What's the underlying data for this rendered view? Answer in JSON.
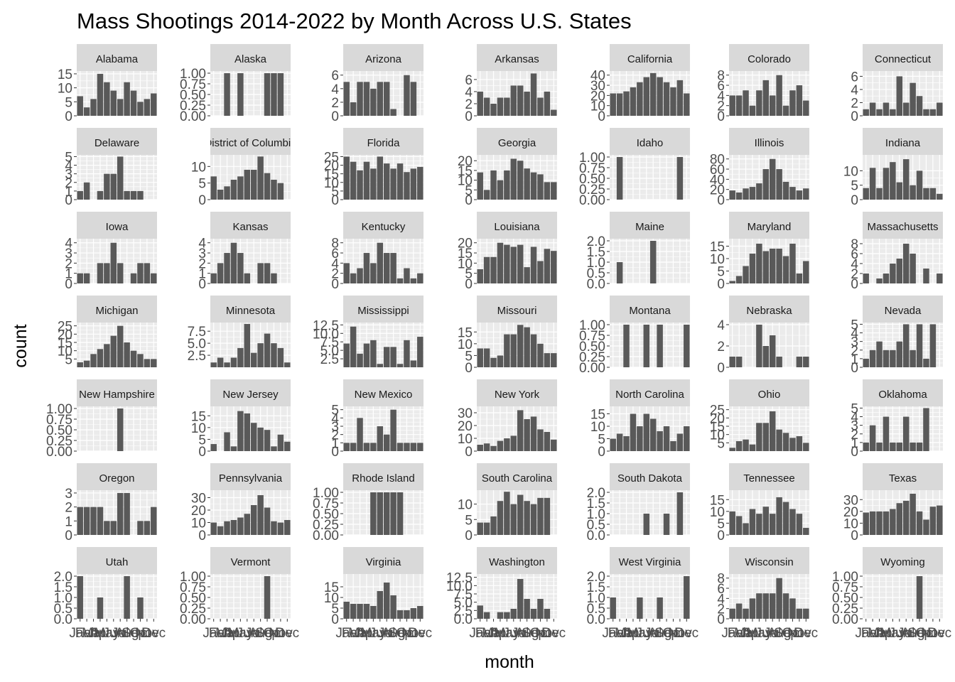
{
  "chart_data": {
    "type": "bar",
    "title": "Mass Shootings 2014-2022 by Month Across U.S. States",
    "xlabel": "month",
    "ylabel": "count",
    "layout": "facet_wrap, 7 columns",
    "grid": true,
    "colors": {
      "bar": "#595959",
      "panel": "#ebebeb",
      "strip": "#d9d9d9",
      "gridline": "#ffffff"
    },
    "categories": [
      "Jan",
      "Feb",
      "Mar",
      "Apr",
      "May",
      "Jun",
      "Jul",
      "Aug",
      "Sep",
      "Oct",
      "Nov",
      "Dec"
    ],
    "panels": [
      {
        "name": "Alabama",
        "ymax": 16,
        "ticks": [
          0,
          5,
          10,
          15
        ],
        "values": [
          7,
          3,
          6,
          15,
          12,
          9,
          6,
          12,
          9,
          5,
          6,
          8
        ]
      },
      {
        "name": "Alaska",
        "ymax": 1.05,
        "ticks": [
          0,
          0.25,
          0.5,
          0.75,
          1
        ],
        "tick_labels": [
          "0.00",
          "0.25",
          "0.50",
          "0.75",
          "1.00"
        ],
        "values": [
          0,
          0,
          1,
          0,
          1,
          0,
          0,
          0,
          1,
          1,
          1,
          0
        ]
      },
      {
        "name": "Arizona",
        "ymax": 6.6,
        "ticks": [
          0,
          2,
          4,
          6
        ],
        "values": [
          5,
          2,
          5,
          5,
          4,
          5,
          5,
          1,
          0,
          6,
          5,
          0
        ]
      },
      {
        "name": "Arkansas",
        "ymax": 7.4,
        "ticks": [
          0,
          2,
          4,
          6
        ],
        "values": [
          4,
          3,
          2,
          3,
          3,
          5,
          5,
          4,
          7,
          3,
          4,
          1
        ]
      },
      {
        "name": "California",
        "ymax": 44,
        "ticks": [
          0,
          10,
          20,
          30,
          40
        ],
        "values": [
          22,
          22,
          24,
          28,
          33,
          38,
          42,
          38,
          33,
          28,
          35,
          22
        ]
      },
      {
        "name": "Colorado",
        "ymax": 8.8,
        "ticks": [
          0,
          2,
          4,
          6,
          8
        ],
        "values": [
          4,
          4,
          5,
          2,
          5,
          7,
          4,
          8,
          2,
          5,
          6,
          3
        ]
      },
      {
        "name": "Connecticut",
        "ymax": 6.8,
        "ticks": [
          0,
          2,
          4,
          6
        ],
        "values": [
          1,
          2,
          1,
          2,
          1,
          6,
          2,
          5,
          3,
          1,
          1,
          2
        ]
      },
      {
        "name": "Delaware",
        "ymax": 5.2,
        "ticks": [
          0,
          1,
          2,
          3,
          4,
          5
        ],
        "values": [
          1,
          2,
          0,
          1,
          3,
          3,
          5,
          1,
          1,
          1,
          0,
          0
        ]
      },
      {
        "name": "District of Columbia",
        "ymax": 13.5,
        "ticks": [
          0,
          5,
          10
        ],
        "values": [
          7,
          3,
          4,
          6,
          7,
          9,
          9,
          13,
          8,
          6,
          5,
          0
        ]
      },
      {
        "name": "Florida",
        "ymax": 26,
        "ticks": [
          0,
          5,
          10,
          15,
          20,
          25
        ],
        "values": [
          25,
          22,
          17,
          22,
          18,
          25,
          21,
          18,
          21,
          16,
          18,
          19
        ]
      },
      {
        "name": "Georgia",
        "ymax": 23,
        "ticks": [
          0,
          5,
          10,
          15,
          20
        ],
        "values": [
          14,
          5,
          15,
          10,
          15,
          21,
          20,
          16,
          14,
          13,
          9,
          9
        ]
      },
      {
        "name": "Idaho",
        "ymax": 1.05,
        "ticks": [
          0,
          0.25,
          0.5,
          0.75,
          1
        ],
        "tick_labels": [
          "0.00",
          "0.25",
          "0.50",
          "0.75",
          "1.00"
        ],
        "values": [
          0,
          1,
          0,
          0,
          0,
          0,
          0,
          0,
          0,
          0,
          1,
          0
        ]
      },
      {
        "name": "Illinois",
        "ymax": 88,
        "ticks": [
          0,
          20,
          40,
          60,
          80
        ],
        "values": [
          18,
          14,
          22,
          25,
          32,
          60,
          80,
          60,
          35,
          25,
          18,
          22
        ]
      },
      {
        "name": "Indiana",
        "ymax": 15.5,
        "ticks": [
          0,
          5,
          10
        ],
        "values": [
          4,
          11,
          4,
          11,
          13,
          6,
          14,
          5,
          10,
          4,
          4,
          2
        ]
      },
      {
        "name": "Iowa",
        "ymax": 4.4,
        "ticks": [
          0,
          1,
          2,
          3,
          4
        ],
        "values": [
          1,
          1,
          0,
          2,
          2,
          4,
          2,
          0,
          1,
          2,
          2,
          1
        ]
      },
      {
        "name": "Kansas",
        "ymax": 4.4,
        "ticks": [
          0,
          1,
          2,
          3,
          4
        ],
        "values": [
          1,
          2,
          3,
          4,
          3,
          1,
          0,
          2,
          2,
          1,
          0,
          0
        ]
      },
      {
        "name": "Kentucky",
        "ymax": 8.8,
        "ticks": [
          0,
          2,
          4,
          6,
          8
        ],
        "values": [
          4,
          2,
          3,
          6,
          4,
          8,
          6,
          6,
          1,
          3,
          1,
          2
        ]
      },
      {
        "name": "Louisiana",
        "ymax": 22,
        "ticks": [
          0,
          5,
          10,
          15,
          20
        ],
        "values": [
          7,
          13,
          13,
          20,
          19,
          18,
          19,
          8,
          18,
          11,
          17,
          16
        ]
      },
      {
        "name": "Maine",
        "ymax": 2.1,
        "ticks": [
          0,
          0.5,
          1,
          1.5,
          2
        ],
        "tick_labels": [
          "0.0",
          "0.5",
          "1.0",
          "1.5",
          "2.0"
        ],
        "values": [
          0,
          1,
          0,
          0,
          0,
          0,
          2,
          0,
          0,
          0,
          0,
          0
        ]
      },
      {
        "name": "Maryland",
        "ymax": 18,
        "ticks": [
          0,
          5,
          10,
          15
        ],
        "values": [
          1,
          3,
          7,
          12,
          16,
          13,
          14,
          14,
          11,
          16,
          4,
          9
        ]
      },
      {
        "name": "Massachusetts",
        "ymax": 9,
        "ticks": [
          0,
          2,
          4,
          6,
          8
        ],
        "values": [
          2,
          0,
          1,
          2,
          4,
          5,
          8,
          6,
          0,
          3,
          0,
          2
        ]
      },
      {
        "name": "Michigan",
        "ymax": 27,
        "ticks": [
          5,
          10,
          15,
          20,
          25
        ],
        "values": [
          3,
          4,
          8,
          11,
          14,
          19,
          25,
          15,
          10,
          8,
          5,
          5
        ]
      },
      {
        "name": "Minnesota",
        "ymax": 9.3,
        "ticks": [
          2.5,
          5,
          7.5
        ],
        "tick_labels": [
          "2.5",
          "5.0",
          "7.5"
        ],
        "values": [
          1,
          2,
          1,
          2,
          4,
          9,
          3,
          5,
          7,
          5,
          4,
          1
        ]
      },
      {
        "name": "Mississippi",
        "ymax": 13.2,
        "ticks": [
          2.5,
          5,
          7.5,
          10,
          12.5
        ],
        "tick_labels": [
          "2.5",
          "5.0",
          "7.5",
          "10.0",
          "12.5"
        ],
        "values": [
          7,
          12,
          4,
          7,
          8,
          1,
          6,
          6,
          1,
          8,
          2,
          9
        ]
      },
      {
        "name": "Missouri",
        "ymax": 19,
        "ticks": [
          0,
          5,
          10,
          15
        ],
        "values": [
          8,
          8,
          4,
          5,
          14,
          14,
          18,
          17,
          14,
          10,
          6,
          6
        ]
      },
      {
        "name": "Montana",
        "ymax": 1.05,
        "ticks": [
          0,
          0.25,
          0.5,
          0.75,
          1
        ],
        "tick_labels": [
          "0.00",
          "0.25",
          "0.50",
          "0.75",
          "1.00"
        ],
        "values": [
          0,
          0,
          1,
          0,
          0,
          1,
          0,
          1,
          0,
          0,
          0,
          1
        ]
      },
      {
        "name": "Nebraska",
        "ymax": 4.2,
        "ticks": [
          0,
          2,
          4
        ],
        "values": [
          1,
          1,
          0,
          0,
          4,
          2,
          3,
          1,
          0,
          0,
          1,
          1
        ]
      },
      {
        "name": "Nevada",
        "ymax": 5.2,
        "ticks": [
          0,
          1,
          2,
          3,
          4,
          5
        ],
        "values": [
          1,
          2,
          3,
          2,
          2,
          3,
          5,
          2,
          5,
          1,
          5,
          0
        ]
      },
      {
        "name": "New Hampshire",
        "ymax": 1.05,
        "ticks": [
          0,
          0.25,
          0.5,
          0.75,
          1
        ],
        "tick_labels": [
          "0.00",
          "0.25",
          "0.50",
          "0.75",
          "1.00"
        ],
        "values": [
          0,
          0,
          0,
          0,
          0,
          0,
          1,
          0,
          0,
          0,
          0,
          0
        ]
      },
      {
        "name": "New Jersey",
        "ymax": 19,
        "ticks": [
          0,
          5,
          10,
          15
        ],
        "values": [
          3,
          0,
          8,
          2,
          17,
          16,
          12,
          10,
          9,
          2,
          7,
          4
        ]
      },
      {
        "name": "New Mexico",
        "ymax": 5.4,
        "ticks": [
          0,
          1,
          2,
          3,
          4,
          5
        ],
        "values": [
          1,
          1,
          4,
          1,
          1,
          3,
          2,
          5,
          1,
          1,
          1,
          1
        ]
      },
      {
        "name": "New York",
        "ymax": 35,
        "ticks": [
          0,
          10,
          20,
          30
        ],
        "values": [
          5,
          6,
          4,
          8,
          10,
          12,
          32,
          25,
          27,
          17,
          15,
          9
        ]
      },
      {
        "name": "North Carolina",
        "ymax": 18,
        "ticks": [
          0,
          5,
          10,
          15
        ],
        "values": [
          5,
          7,
          6,
          15,
          10,
          15,
          13,
          8,
          10,
          4,
          7,
          10
        ]
      },
      {
        "name": "Ohio",
        "ymax": 27,
        "ticks": [
          5,
          10,
          15,
          20,
          25
        ],
        "values": [
          2,
          6,
          7,
          4,
          17,
          17,
          24,
          13,
          11,
          8,
          9,
          5
        ]
      },
      {
        "name": "Oklahoma",
        "ymax": 5.2,
        "ticks": [
          0,
          1,
          2,
          3,
          4,
          5
        ],
        "values": [
          1,
          3,
          1,
          4,
          1,
          1,
          4,
          1,
          1,
          5,
          0,
          0
        ]
      },
      {
        "name": "Oregon",
        "ymax": 3.2,
        "ticks": [
          0,
          1,
          2,
          3
        ],
        "values": [
          2,
          2,
          2,
          2,
          1,
          1,
          3,
          3,
          0,
          1,
          1,
          2
        ]
      },
      {
        "name": "Pennsylvania",
        "ymax": 36,
        "ticks": [
          0,
          10,
          20,
          30
        ],
        "values": [
          10,
          7,
          11,
          12,
          14,
          17,
          24,
          32,
          22,
          11,
          10,
          12
        ]
      },
      {
        "name": "Rhode Island",
        "ymax": 1.05,
        "ticks": [
          0,
          0.25,
          0.5,
          0.75,
          1
        ],
        "tick_labels": [
          "0.00",
          "0.25",
          "0.50",
          "0.75",
          "1.00"
        ],
        "values": [
          0,
          0,
          0,
          0,
          1,
          1,
          1,
          1,
          1,
          0,
          0,
          0
        ]
      },
      {
        "name": "South Carolina",
        "ymax": 14.5,
        "ticks": [
          0,
          5,
          10
        ],
        "values": [
          4,
          4,
          6,
          11,
          14,
          10,
          13,
          11,
          10,
          12,
          12,
          0
        ]
      },
      {
        "name": "South Dakota",
        "ymax": 2.1,
        "ticks": [
          0,
          0.5,
          1,
          1.5,
          2
        ],
        "tick_labels": [
          "0.0",
          "0.5",
          "1.0",
          "1.5",
          "2.0"
        ],
        "values": [
          0,
          0,
          0,
          0,
          0,
          1,
          0,
          0,
          1,
          0,
          2,
          0
        ]
      },
      {
        "name": "Tennessee",
        "ymax": 19,
        "ticks": [
          0,
          5,
          10,
          15
        ],
        "values": [
          10,
          8,
          5,
          11,
          9,
          12,
          9,
          16,
          14,
          11,
          9,
          3
        ]
      },
      {
        "name": "Texas",
        "ymax": 38,
        "ticks": [
          0,
          10,
          20,
          30
        ],
        "values": [
          19,
          20,
          20,
          20,
          22,
          27,
          29,
          35,
          20,
          13,
          24,
          25
        ]
      },
      {
        "name": "Utah",
        "ymax": 2.1,
        "ticks": [
          0,
          0.5,
          1,
          1.5,
          2
        ],
        "tick_labels": [
          "0.0",
          "0.5",
          "1.0",
          "1.5",
          "2.0"
        ],
        "values": [
          2,
          0,
          0,
          1,
          0,
          0,
          0,
          2,
          0,
          1,
          0,
          0
        ]
      },
      {
        "name": "Vermont",
        "ymax": 1.05,
        "ticks": [
          0,
          0.25,
          0.5,
          0.75,
          1
        ],
        "tick_labels": [
          "0.00",
          "0.25",
          "0.50",
          "0.75",
          "1.00"
        ],
        "values": [
          0,
          0,
          0,
          0,
          0,
          0,
          0,
          0,
          1,
          0,
          0,
          0
        ]
      },
      {
        "name": "Virginia",
        "ymax": 21,
        "ticks": [
          0,
          5,
          10,
          15
        ],
        "values": [
          8,
          7,
          7,
          7,
          6,
          13,
          17,
          11,
          4,
          4,
          5,
          6
        ]
      },
      {
        "name": "Washington",
        "ymax": 13.5,
        "ticks": [
          0,
          2.5,
          5,
          7.5,
          10,
          12.5
        ],
        "tick_labels": [
          "0.0",
          "2.5",
          "5.0",
          "7.5",
          "10.0",
          "12.5"
        ],
        "values": [
          4,
          2,
          0,
          2,
          2,
          3,
          12,
          6,
          3,
          6,
          3,
          0
        ]
      },
      {
        "name": "West Virginia",
        "ymax": 2.1,
        "ticks": [
          0,
          0.5,
          1,
          1.5,
          2
        ],
        "tick_labels": [
          "0.0",
          "0.5",
          "1.0",
          "1.5",
          "2.0"
        ],
        "values": [
          1,
          0,
          0,
          0,
          1,
          0,
          0,
          1,
          0,
          0,
          0,
          2
        ]
      },
      {
        "name": "Wisconsin",
        "ymax": 8.8,
        "ticks": [
          0,
          2,
          4,
          6,
          8
        ],
        "values": [
          2,
          3,
          2,
          4,
          5,
          5,
          5,
          8,
          5,
          4,
          2,
          2
        ]
      },
      {
        "name": "Wyoming",
        "ymax": 1.05,
        "ticks": [
          0,
          0.25,
          0.5,
          0.75,
          1
        ],
        "tick_labels": [
          "0.00",
          "0.25",
          "0.50",
          "0.75",
          "1.00"
        ],
        "values": [
          0,
          0,
          0,
          0,
          0,
          0,
          0,
          0,
          1,
          0,
          0,
          0
        ]
      }
    ]
  }
}
